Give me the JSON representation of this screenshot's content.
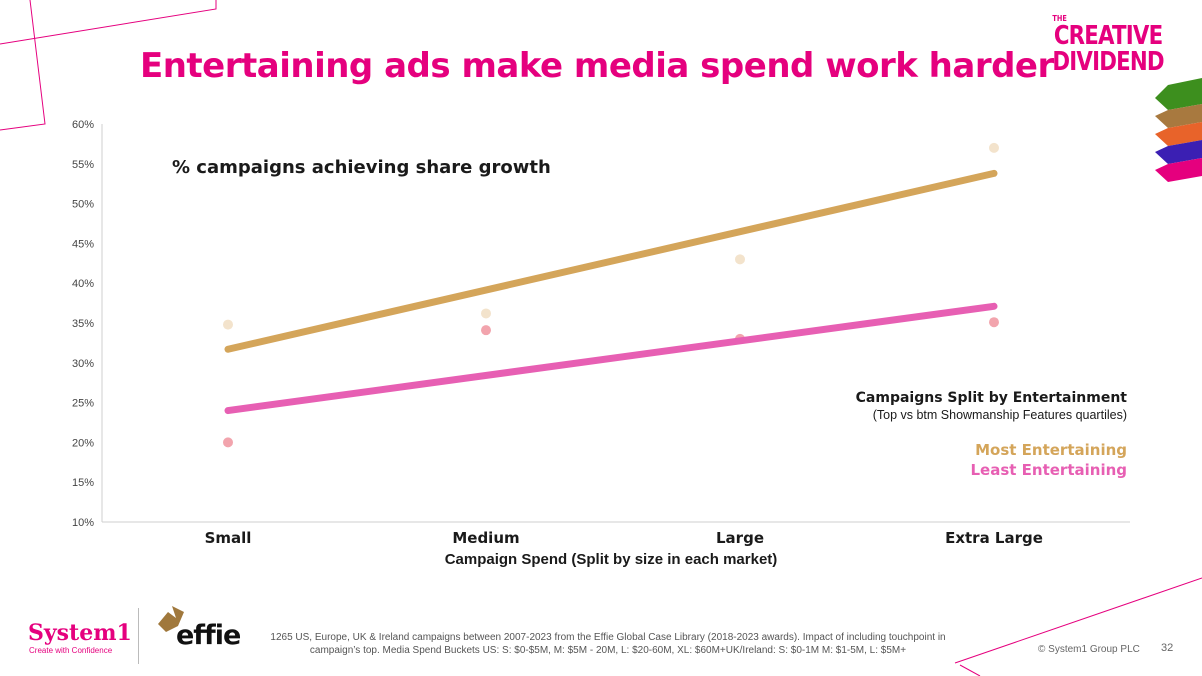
{
  "page": {
    "title": "Entertaining ads make media spend work harder",
    "brand": {
      "line1": "THE",
      "line2": "CREATIVE",
      "line3": "DIVIDEND"
    },
    "footer": {
      "system1_logo": "System1",
      "system1_tagline": "Create with Confidence",
      "effie_logo": "effie",
      "note": "1265 US, Europe, UK & Ireland campaigns between 2007-2023 from the Effie Global Case Library (2018-2023 awards). Impact of including touchpoint in campaign’s top. Media Spend Buckets US: S: $0-$5M, M: $5M - 20M, L: $20-60M, XL: $60M+UK/Ireland: S: $0-1M M: $1-5M, L: $5M+",
      "copyright": "© System1 Group PLC",
      "page_number": "32"
    }
  },
  "chart_data": {
    "type": "scatter",
    "title": "% campaigns achieving share growth",
    "xlabel": "Campaign Spend (Split by size in each market)",
    "categories": [
      "Small",
      "Medium",
      "Large",
      "Extra Large"
    ],
    "ylim": [
      10,
      60
    ],
    "yticks": [
      10,
      15,
      20,
      25,
      30,
      35,
      40,
      45,
      50,
      55,
      60
    ],
    "ytick_labels": [
      "10%",
      "15%",
      "20%",
      "25%",
      "30%",
      "35%",
      "40%",
      "45%",
      "50%",
      "55%",
      "60%"
    ],
    "grid": false,
    "legend": {
      "title": "Campaigns Split by Entertainment",
      "subtitle": "(Top vs btm Showmanship Features quartiles)",
      "placement": "right"
    },
    "series": [
      {
        "name": "Most Entertaining",
        "color": "#d4a55a",
        "point_color": "#f3e3cc",
        "values": [
          34.8,
          36.2,
          43,
          57
        ],
        "trend": [
          31.7,
          39.1,
          46.5,
          53.8
        ]
      },
      {
        "name": "Least Entertaining",
        "color": "#e75fb3",
        "point_color": "#f2a4ad",
        "values": [
          20,
          34.1,
          33,
          35.1
        ],
        "trend": [
          24,
          28.4,
          32.8,
          37.1
        ]
      }
    ]
  }
}
